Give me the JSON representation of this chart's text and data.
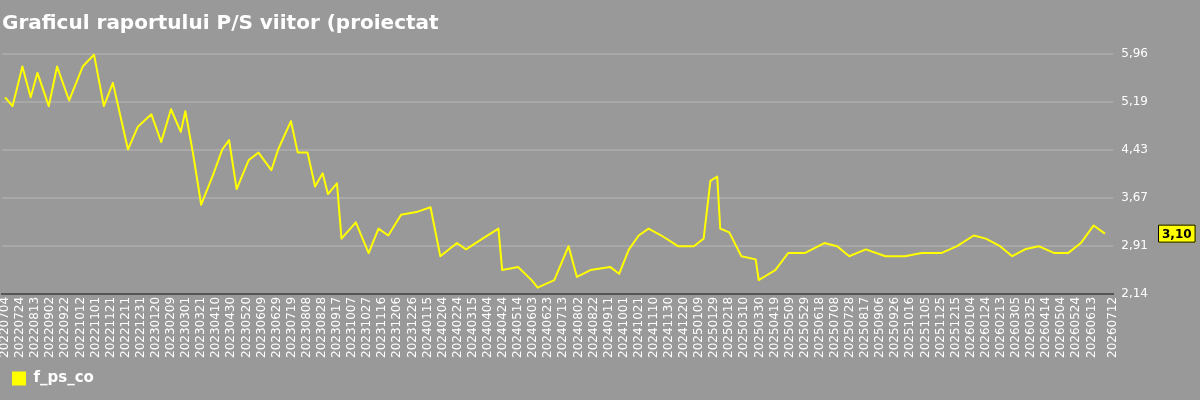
{
  "chart_data": {
    "type": "line",
    "title": "Graficul raportului P/S viitor (proiectat",
    "x": [
      "2022-07-04",
      "2022-07-14",
      "2022-07-27",
      "2022-08-07",
      "2022-08-16",
      "2022-08-31",
      "2022-09-11",
      "2022-09-27",
      "2022-10-15",
      "2022-10-30",
      "2022-11-12",
      "2022-11-24",
      "2022-12-14",
      "2022-12-27",
      "2023-01-14",
      "2023-01-27",
      "2023-02-09",
      "2023-02-22",
      "2023-02-28",
      "2023-03-10",
      "2023-03-21",
      "2023-04-05",
      "2023-04-18",
      "2023-04-27",
      "2023-05-07",
      "2023-05-23",
      "2023-06-05",
      "2023-06-22",
      "2023-07-01",
      "2023-07-18",
      "2023-07-27",
      "2023-08-09",
      "2023-08-19",
      "2023-08-29",
      "2023-09-05",
      "2023-09-17",
      "2023-09-23",
      "2023-10-12",
      "2023-10-29",
      "2023-11-11",
      "2023-11-24",
      "2023-12-11",
      "2024-01-02",
      "2024-01-19",
      "2024-02-01",
      "2024-02-23",
      "2024-03-06",
      "2024-03-28",
      "2024-04-18",
      "2024-04-23",
      "2024-05-14",
      "2024-06-01",
      "2024-06-09",
      "2024-07-01",
      "2024-07-20",
      "2024-07-31",
      "2024-08-18",
      "2024-09-13",
      "2024-09-25",
      "2024-10-08",
      "2024-10-21",
      "2024-11-03",
      "2024-11-20",
      "2024-12-12",
      "2025-01-02",
      "2025-01-15",
      "2025-01-24",
      "2025-02-02",
      "2025-02-06",
      "2025-02-18",
      "2025-03-06",
      "2025-03-25",
      "2025-03-29",
      "2025-04-20",
      "2025-05-07",
      "2025-05-29",
      "2025-06-24",
      "2025-07-11",
      "2025-07-27",
      "2025-08-18",
      "2025-09-13",
      "2025-10-09",
      "2025-10-31",
      "2025-11-26",
      "2025-12-17",
      "2026-01-08",
      "2026-01-24",
      "2026-02-12",
      "2026-02-28",
      "2026-03-17",
      "2026-04-04",
      "2026-04-25",
      "2026-05-13",
      "2026-05-30",
      "2026-06-16",
      "2026-07-01"
    ],
    "series": [
      {
        "name": "f_ps_co",
        "color": "#ffff00",
        "values": [
          5.27,
          5.13,
          5.76,
          5.27,
          5.66,
          5.13,
          5.76,
          5.22,
          5.76,
          5.95,
          5.13,
          5.5,
          4.44,
          4.8,
          5.0,
          4.56,
          5.08,
          4.72,
          5.05,
          4.39,
          3.56,
          4.01,
          4.44,
          4.59,
          3.81,
          4.27,
          4.39,
          4.11,
          4.44,
          4.89,
          4.39,
          4.39,
          3.85,
          4.06,
          3.73,
          3.9,
          3.02,
          3.28,
          2.79,
          3.18,
          3.07,
          3.4,
          3.45,
          3.52,
          2.74,
          2.95,
          2.85,
          3.02,
          3.18,
          2.52,
          2.57,
          2.36,
          2.24,
          2.36,
          2.9,
          2.41,
          2.52,
          2.57,
          2.46,
          2.85,
          3.07,
          3.18,
          3.07,
          2.9,
          2.9,
          3.02,
          3.94,
          4.01,
          3.18,
          3.12,
          2.74,
          2.69,
          2.36,
          2.52,
          2.79,
          2.79,
          2.95,
          2.9,
          2.74,
          2.85,
          2.74,
          2.74,
          2.79,
          2.79,
          2.9,
          3.07,
          3.02,
          2.9,
          2.74,
          2.85,
          2.9,
          2.79,
          2.79,
          2.95,
          3.23,
          3.1
        ]
      }
    ],
    "xlim": [
      "2022-06-30",
      "2026-07-12"
    ],
    "xticks": [
      {
        "value": "2022-07-04",
        "label": "20220704"
      },
      {
        "value": "2022-07-24",
        "label": "20220724"
      },
      {
        "value": "2022-08-13",
        "label": "20220813"
      },
      {
        "value": "2022-09-02",
        "label": "20220902"
      },
      {
        "value": "2022-09-22",
        "label": "20220922"
      },
      {
        "value": "2022-10-12",
        "label": "20221012"
      },
      {
        "value": "2022-11-01",
        "label": "20221101"
      },
      {
        "value": "2022-11-21",
        "label": "20221121"
      },
      {
        "value": "2022-12-11",
        "label": "20221211"
      },
      {
        "value": "2022-12-31",
        "label": "20221231"
      },
      {
        "value": "2023-01-20",
        "label": "20230120"
      },
      {
        "value": "2023-02-09",
        "label": "20230209"
      },
      {
        "value": "2023-03-01",
        "label": "20230301"
      },
      {
        "value": "2023-03-21",
        "label": "20230321"
      },
      {
        "value": "2023-04-10",
        "label": "20230410"
      },
      {
        "value": "2023-04-30",
        "label": "20230430"
      },
      {
        "value": "2023-05-20",
        "label": "20230520"
      },
      {
        "value": "2023-06-09",
        "label": "20230609"
      },
      {
        "value": "2023-06-29",
        "label": "20230629"
      },
      {
        "value": "2023-07-19",
        "label": "20230719"
      },
      {
        "value": "2023-08-08",
        "label": "20230808"
      },
      {
        "value": "2023-08-28",
        "label": "20230828"
      },
      {
        "value": "2023-09-17",
        "label": "20230917"
      },
      {
        "value": "2023-10-07",
        "label": "20231007"
      },
      {
        "value": "2023-10-27",
        "label": "20231027"
      },
      {
        "value": "2023-11-16",
        "label": "20231116"
      },
      {
        "value": "2023-12-06",
        "label": "20231206"
      },
      {
        "value": "2023-12-26",
        "label": "20231226"
      },
      {
        "value": "2024-01-15",
        "label": "20240115"
      },
      {
        "value": "2024-02-04",
        "label": "20240204"
      },
      {
        "value": "2024-02-24",
        "label": "20240224"
      },
      {
        "value": "2024-03-15",
        "label": "20240315"
      },
      {
        "value": "2024-04-04",
        "label": "20240404"
      },
      {
        "value": "2024-04-24",
        "label": "20240424"
      },
      {
        "value": "2024-05-14",
        "label": "20240514"
      },
      {
        "value": "2024-06-03",
        "label": "20240603"
      },
      {
        "value": "2024-06-23",
        "label": "20240623"
      },
      {
        "value": "2024-07-13",
        "label": "20240713"
      },
      {
        "value": "2024-08-02",
        "label": "20240802"
      },
      {
        "value": "2024-08-22",
        "label": "20240822"
      },
      {
        "value": "2024-09-11",
        "label": "20240911"
      },
      {
        "value": "2024-10-01",
        "label": "20241001"
      },
      {
        "value": "2024-10-21",
        "label": "20241021"
      },
      {
        "value": "2024-11-10",
        "label": "20241110"
      },
      {
        "value": "2024-11-30",
        "label": "20241130"
      },
      {
        "value": "2024-12-20",
        "label": "20241220"
      },
      {
        "value": "2025-01-09",
        "label": "20250109"
      },
      {
        "value": "2025-01-29",
        "label": "20250129"
      },
      {
        "value": "2025-02-18",
        "label": "20250218"
      },
      {
        "value": "2025-03-10",
        "label": "20250310"
      },
      {
        "value": "2025-03-30",
        "label": "20250330"
      },
      {
        "value": "2025-04-19",
        "label": "20250419"
      },
      {
        "value": "2025-05-09",
        "label": "20250509"
      },
      {
        "value": "2025-05-29",
        "label": "20250529"
      },
      {
        "value": "2025-06-18",
        "label": "20250618"
      },
      {
        "value": "2025-07-08",
        "label": "20250708"
      },
      {
        "value": "2025-07-28",
        "label": "20250728"
      },
      {
        "value": "2025-08-17",
        "label": "20250817"
      },
      {
        "value": "2025-09-06",
        "label": "20250906"
      },
      {
        "value": "2025-09-26",
        "label": "20250926"
      },
      {
        "value": "2025-10-16",
        "label": "20251016"
      },
      {
        "value": "2025-11-05",
        "label": "20251105"
      },
      {
        "value": "2025-11-25",
        "label": "20251125"
      },
      {
        "value": "2025-12-15",
        "label": "20251215"
      },
      {
        "value": "2026-01-04",
        "label": "20260104"
      },
      {
        "value": "2026-01-24",
        "label": "20260124"
      },
      {
        "value": "2026-02-13",
        "label": "20260213"
      },
      {
        "value": "2026-03-05",
        "label": "20260305"
      },
      {
        "value": "2026-03-25",
        "label": "20260325"
      },
      {
        "value": "2026-04-14",
        "label": "20260414"
      },
      {
        "value": "2026-05-04",
        "label": "20260504"
      },
      {
        "value": "2026-05-24",
        "label": "20260524"
      },
      {
        "value": "2026-06-13",
        "label": "20260613"
      },
      {
        "value": "2026-07-12",
        "label": "20260712"
      }
    ],
    "ylim": [
      2.14,
      5.96
    ],
    "yticks": [
      {
        "value": 2.14,
        "label": "2,14"
      },
      {
        "value": 2.91,
        "label": "2,91"
      },
      {
        "value": 3.67,
        "label": "3,67"
      },
      {
        "value": 4.43,
        "label": "4,43"
      },
      {
        "value": 5.19,
        "label": "5,19"
      },
      {
        "value": 5.96,
        "label": "5,96"
      }
    ],
    "annotations": [
      "3,10"
    ],
    "grid": "y",
    "legend": "bottom left",
    "marker": "none",
    "line_style": "solid"
  }
}
